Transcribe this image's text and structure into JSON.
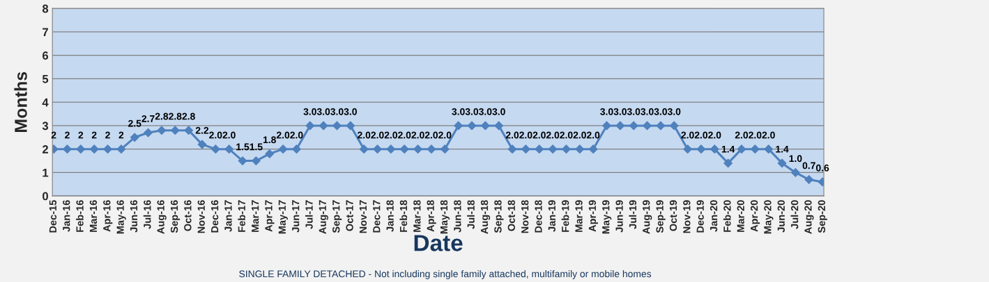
{
  "chart_data": {
    "type": "line",
    "categories": [
      "Dec-15",
      "Jan-16",
      "Feb-16",
      "Mar-16",
      "Apr-16",
      "May-16",
      "Jun-16",
      "Jul-16",
      "Aug-16",
      "Sep-16",
      "Oct-16",
      "Nov-16",
      "Dec-16",
      "Jan-17",
      "Feb-17",
      "Mar-17",
      "Apr-17",
      "May-17",
      "Jun-17",
      "Jul-17",
      "Aug-17",
      "Sep-17",
      "Oct-17",
      "Nov-17",
      "Dec-17",
      "Jan-18",
      "Feb-18",
      "Mar-18",
      "Apr-18",
      "May-18",
      "Jun-18",
      "Jul-18",
      "Aug-18",
      "Sep-18",
      "Oct-18",
      "Nov-18",
      "Dec-18",
      "Jan-19",
      "Feb-19",
      "Mar-19",
      "Apr-19",
      "May-19",
      "Jun-19",
      "Jul-19",
      "Aug-19",
      "Sep-19",
      "Oct-19",
      "Nov-19",
      "Dec-19",
      "Jan-20",
      "Feb-20",
      "Mar-20",
      "Apr-20",
      "May-20",
      "Jun-20",
      "Jul-20",
      "Aug-20",
      "Sep-20"
    ],
    "series": [
      {
        "color": "#4f81bd",
        "values": [
          2,
          2,
          2,
          2,
          2,
          2,
          2.5,
          2.7,
          2.8,
          2.8,
          2.8,
          2.2,
          2.0,
          2.0,
          1.5,
          1.5,
          1.8,
          2.0,
          2.0,
          3.0,
          3.0,
          3.0,
          3.0,
          2.0,
          2.0,
          2.0,
          2.0,
          2.0,
          2.0,
          2.0,
          3.0,
          3.0,
          3.0,
          3.0,
          2.0,
          2.0,
          2.0,
          2.0,
          2.0,
          2.0,
          2.0,
          3.0,
          3.0,
          3.0,
          3.0,
          3.0,
          3.0,
          2.0,
          2.0,
          2.0,
          1.4,
          2.0,
          2.0,
          2.0,
          1.4,
          1.0,
          0.7,
          0.6
        ],
        "value_labels": [
          "2",
          "2",
          "2",
          "2",
          "2",
          "2",
          "2.5",
          "2.7",
          "2.8",
          "2.8",
          "2.8",
          "2.2",
          "2.0",
          "2.0",
          "1.5",
          "1.5",
          "1.8",
          "2.0",
          "2.0",
          "3.0",
          "3.0",
          "3.0",
          "3.0",
          "2.0",
          "2.0",
          "2.0",
          "2.0",
          "2.0",
          "2.0",
          "2.0",
          "3.0",
          "3.0",
          "3.0",
          "3.0",
          "2.0",
          "2.0",
          "2.0",
          "2.0",
          "2.0",
          "2.0",
          "2.0",
          "3.0",
          "3.0",
          "3.0",
          "3.0",
          "3.0",
          "3.0",
          "2.0",
          "2.0",
          "2.0",
          "1.4",
          "2.0",
          "2.0",
          "2.0",
          "1.4",
          "1.0",
          "0.7",
          "0.6"
        ]
      }
    ],
    "xlabel": "Date",
    "ylabel": "Months",
    "ylim": [
      0,
      8
    ],
    "yticks": [
      0,
      1,
      2,
      3,
      4,
      5,
      6,
      7,
      8
    ],
    "grid": "y",
    "marker": "diamond",
    "line_style": "solid",
    "annotations": [
      "SINGLE FAMILY DETACHED - Not including single family attached, multifamily or mobile homes"
    ]
  }
}
